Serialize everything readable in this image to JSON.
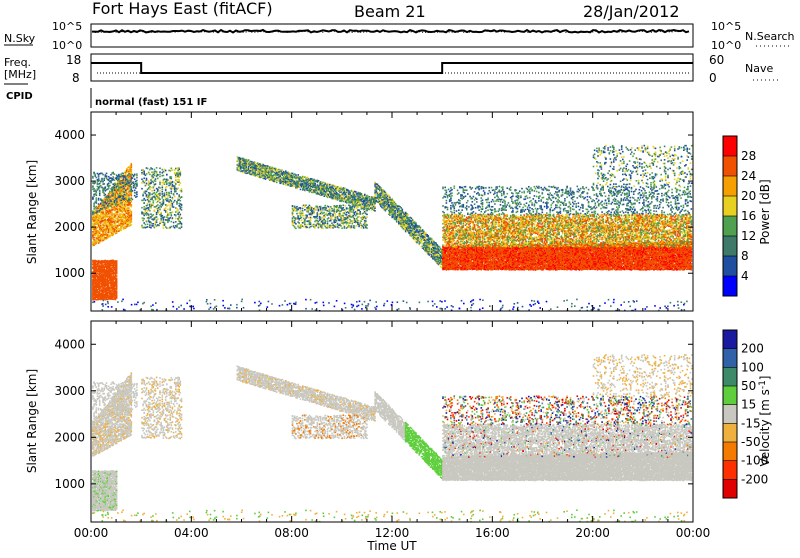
{
  "header": {
    "title": "Fort Hays East (fitACF)",
    "beam": "Beam 21",
    "date": "28/Jan/2012"
  },
  "strips": {
    "nsky_label": "N.Sky",
    "nsky_ticks": [
      "10^5",
      "10^0"
    ],
    "nsearch_label": "N.Search",
    "nsearch_ticks": [
      "10^5",
      "10^0"
    ],
    "freq_label": "Freq.",
    "freq_unit": "[MHz]",
    "freq_ticks": [
      "18",
      "8"
    ],
    "nave_label": "Nave",
    "nave_ticks": [
      "60",
      "0"
    ],
    "cpid_label": "CPID",
    "cpid_value": "normal (fast) 151 IF",
    "freq_steps": [
      {
        "from": 0.0,
        "to": 2.0,
        "value": "high"
      },
      {
        "from": 2.0,
        "to": 14.0,
        "value": "low"
      },
      {
        "from": 14.0,
        "to": 24.0,
        "value": "high"
      }
    ]
  },
  "chart_data": [
    {
      "type": "heatmap",
      "title": "",
      "xlabel": "",
      "ylabel": "Slant Range [km]",
      "xlim": [
        "00:00",
        "00:00"
      ],
      "ylim": [
        180,
        4500
      ],
      "yticks": [
        1000,
        2000,
        3000,
        4000
      ],
      "colorbar_label": "Power [dB]",
      "colorbar_ticks": [
        28,
        24,
        20,
        16,
        12,
        8,
        4
      ],
      "colors": [
        "#0000ff",
        "#1f4fa0",
        "#3d7a6a",
        "#4fa04f",
        "#e8d020",
        "#f5a000",
        "#f05000",
        "#ff0000"
      ]
    },
    {
      "type": "heatmap",
      "title": "",
      "xlabel": "Time UT",
      "ylabel": "Slant Range [km]",
      "xticks": [
        "00:00",
        "04:00",
        "08:00",
        "12:00",
        "16:00",
        "20:00",
        "00:00"
      ],
      "ylim": [
        180,
        4500
      ],
      "yticks": [
        1000,
        2000,
        3000,
        4000
      ],
      "colorbar_label": "Velocity [m s",
      "colorbar_sup": "-1",
      "colorbar_tail": "]",
      "colorbar_ticks": [
        "200",
        "100",
        "50",
        "15",
        "-15",
        "-50",
        "-100",
        "-200"
      ],
      "colors": [
        "#1a1aa0",
        "#2f62a8",
        "#3d8a6a",
        "#5fce3c",
        "#c8c8c0",
        "#f0b040",
        "#f57a00",
        "#ff3000",
        "#e00000"
      ]
    }
  ]
}
